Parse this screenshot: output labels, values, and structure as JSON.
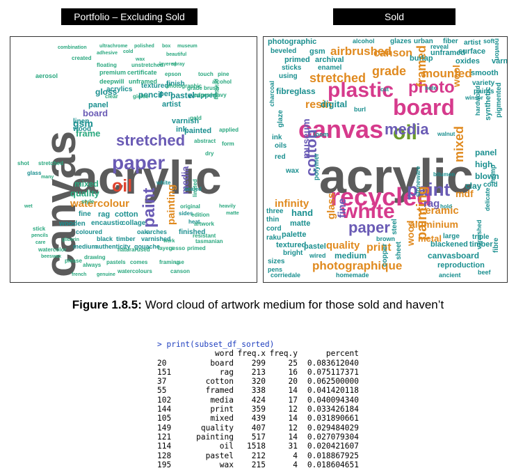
{
  "panels": {
    "left_title": "Portfolio – Excluding Sold",
    "right_title": "Sold"
  },
  "colors": {
    "gray": "#5b5b5b",
    "green": "#2aa87f",
    "teal": "#1a8f8f",
    "purple": "#6a5bb5",
    "pink": "#d63a8c",
    "red": "#e0442f",
    "orange": "#e08a1f",
    "olive": "#6b9a2a",
    "blue": "#3f72c8"
  },
  "cloud_left": {
    "words": [
      {
        "text": "acrylic",
        "color": "gray"
      },
      {
        "text": "canvas",
        "color": "gray"
      },
      {
        "text": "paper",
        "color": "purple"
      },
      {
        "text": "stretched",
        "color": "purple"
      },
      {
        "text": "oil",
        "color": "red"
      },
      {
        "text": "paint",
        "color": "purple"
      },
      {
        "text": "watercolour",
        "color": "orange"
      },
      {
        "text": "painting",
        "color": "orange"
      },
      {
        "text": "gsm",
        "color": "teal"
      },
      {
        "text": "board",
        "color": "purple"
      },
      {
        "text": "mixed",
        "color": "green"
      },
      {
        "text": "quality",
        "color": "green"
      },
      {
        "text": "media",
        "color": "purple"
      },
      {
        "text": "frame",
        "color": "green"
      },
      {
        "text": "ink",
        "color": "teal"
      },
      {
        "text": "painted",
        "color": "teal"
      },
      {
        "text": "varnish",
        "color": "teal"
      },
      {
        "text": "linen",
        "color": "teal"
      },
      {
        "text": "wood",
        "color": "teal"
      },
      {
        "text": "panel",
        "color": "teal"
      },
      {
        "text": "artist",
        "color": "teal"
      },
      {
        "text": "pastel",
        "color": "teal"
      },
      {
        "text": "pencil",
        "color": "teal"
      },
      {
        "text": "pen",
        "color": "teal"
      },
      {
        "text": "gloss",
        "color": "teal"
      },
      {
        "text": "acrylics",
        "color": "teal"
      },
      {
        "text": "textured",
        "color": "teal"
      },
      {
        "text": "finish",
        "color": "teal"
      },
      {
        "text": "wrapped",
        "color": "teal"
      },
      {
        "text": "fine",
        "color": "teal"
      },
      {
        "text": "rag",
        "color": "teal"
      },
      {
        "text": "cotton",
        "color": "teal"
      },
      {
        "text": "encaustic",
        "color": "teal"
      },
      {
        "text": "collage",
        "color": "teal"
      },
      {
        "text": "oak",
        "color": "teal"
      },
      {
        "text": "arches",
        "color": "teal"
      },
      {
        "text": "finished",
        "color": "teal"
      },
      {
        "text": "wooden",
        "color": "teal"
      },
      {
        "text": "coloured",
        "color": "teal"
      },
      {
        "text": "black",
        "color": "teal"
      },
      {
        "text": "timber",
        "color": "teal"
      },
      {
        "text": "varnished",
        "color": "teal"
      },
      {
        "text": "medium",
        "color": "teal"
      },
      {
        "text": "authenticity",
        "color": "teal"
      },
      {
        "text": "gouache",
        "color": "teal"
      },
      {
        "text": "glass",
        "color": "teal"
      },
      {
        "text": "white",
        "color": "teal"
      },
      {
        "text": "sealed",
        "color": "teal"
      },
      {
        "text": "sides",
        "color": "teal"
      },
      {
        "text": "heat",
        "color": "teal"
      },
      {
        "text": "combination",
        "color": "green"
      },
      {
        "text": "ultrachrome",
        "color": "green"
      },
      {
        "text": "polished",
        "color": "green"
      },
      {
        "text": "box",
        "color": "green"
      },
      {
        "text": "museum",
        "color": "green"
      },
      {
        "text": "adhesive",
        "color": "green"
      },
      {
        "text": "beautiful",
        "color": "green"
      },
      {
        "text": "created",
        "color": "green"
      },
      {
        "text": "premium",
        "color": "green"
      },
      {
        "text": "certificate",
        "color": "green"
      },
      {
        "text": "epson",
        "color": "green"
      },
      {
        "text": "photographic",
        "color": "green"
      },
      {
        "text": "floating",
        "color": "green"
      },
      {
        "text": "unstretched",
        "color": "green"
      },
      {
        "text": "touch",
        "color": "green"
      },
      {
        "text": "pine",
        "color": "green"
      },
      {
        "text": "aerosol",
        "color": "green"
      },
      {
        "text": "deepwill",
        "color": "green"
      },
      {
        "text": "unframed",
        "color": "green"
      },
      {
        "text": "alcohol",
        "color": "green"
      },
      {
        "text": "grade",
        "color": "green"
      },
      {
        "text": "brush",
        "color": "green"
      },
      {
        "text": "printing",
        "color": "green"
      },
      {
        "text": "heavy",
        "color": "green"
      },
      {
        "text": "edges",
        "color": "green"
      },
      {
        "text": "form",
        "color": "green"
      },
      {
        "text": "applied",
        "color": "green"
      },
      {
        "text": "gold",
        "color": "green"
      },
      {
        "text": "edition",
        "color": "green"
      },
      {
        "text": "limited",
        "color": "green"
      },
      {
        "text": "original",
        "color": "green"
      },
      {
        "text": "artwork",
        "color": "green"
      },
      {
        "text": "resistant",
        "color": "green"
      },
      {
        "text": "natural",
        "color": "green"
      },
      {
        "text": "used",
        "color": "green"
      },
      {
        "text": "layers",
        "color": "green"
      },
      {
        "text": "gesso",
        "color": "green"
      },
      {
        "text": "primed",
        "color": "green"
      },
      {
        "text": "tasmanian",
        "color": "green"
      },
      {
        "text": "drawing",
        "color": "green"
      },
      {
        "text": "pastels",
        "color": "green"
      },
      {
        "text": "comes",
        "color": "green"
      },
      {
        "text": "framing",
        "color": "green"
      },
      {
        "text": "use",
        "color": "green"
      },
      {
        "text": "please",
        "color": "green"
      },
      {
        "text": "always",
        "color": "green"
      },
      {
        "text": "watercolours",
        "color": "green"
      },
      {
        "text": "canson",
        "color": "green"
      },
      {
        "text": "french",
        "color": "green"
      },
      {
        "text": "genuine",
        "color": "green"
      },
      {
        "text": "watercolor",
        "color": "green"
      },
      {
        "text": "glicerin",
        "color": "green"
      },
      {
        "text": "beeswax",
        "color": "green"
      },
      {
        "text": "care",
        "color": "green"
      },
      {
        "text": "pencils",
        "color": "green"
      },
      {
        "text": "stick",
        "color": "green"
      },
      {
        "text": "wet",
        "color": "green"
      },
      {
        "text": "heavily",
        "color": "green"
      },
      {
        "text": "matte",
        "color": "green"
      },
      {
        "text": "many",
        "color": "green"
      },
      {
        "text": "style",
        "color": "green"
      },
      {
        "text": "work",
        "color": "green"
      },
      {
        "text": "cold",
        "color": "green"
      },
      {
        "text": "wax",
        "color": "green"
      },
      {
        "text": "clear",
        "color": "green"
      },
      {
        "text": "giclée",
        "color": "green"
      },
      {
        "text": "layered",
        "color": "green"
      },
      {
        "text": "spray",
        "color": "green"
      },
      {
        "text": "abstract",
        "color": "green"
      },
      {
        "text": "dry",
        "color": "green"
      },
      {
        "text": "shot",
        "color": "green"
      },
      {
        "text": "stretched",
        "color": "green"
      }
    ]
  },
  "cloud_right": {
    "words": [
      {
        "text": "acrylic",
        "color": "gray"
      },
      {
        "text": "canvas",
        "color": "pink"
      },
      {
        "text": "recycled",
        "color": "pink"
      },
      {
        "text": "board",
        "color": "pink"
      },
      {
        "text": "oil",
        "color": "olive"
      },
      {
        "text": "plastic",
        "color": "pink"
      },
      {
        "text": "white",
        "color": "pink"
      },
      {
        "text": "paint",
        "color": "purple"
      },
      {
        "text": "media",
        "color": "purple"
      },
      {
        "text": "paper",
        "color": "purple"
      },
      {
        "text": "photo",
        "color": "pink"
      },
      {
        "text": "cotton",
        "color": "purple"
      },
      {
        "text": "painting",
        "color": "orange"
      },
      {
        "text": "mixed",
        "color": "orange"
      },
      {
        "text": "framed",
        "color": "orange"
      },
      {
        "text": "stretched",
        "color": "orange"
      },
      {
        "text": "grade",
        "color": "orange"
      },
      {
        "text": "airbrushed",
        "color": "orange"
      },
      {
        "text": "canson",
        "color": "orange"
      },
      {
        "text": "mounted",
        "color": "orange"
      },
      {
        "text": "resin",
        "color": "orange"
      },
      {
        "text": "infinity",
        "color": "orange"
      },
      {
        "text": "ceramic",
        "color": "orange"
      },
      {
        "text": "aluminium",
        "color": "orange"
      },
      {
        "text": "photographique",
        "color": "orange"
      },
      {
        "text": "quality",
        "color": "orange"
      },
      {
        "text": "print",
        "color": "orange"
      },
      {
        "text": "wood",
        "color": "orange"
      },
      {
        "text": "fine",
        "color": "purple"
      },
      {
        "text": "glass",
        "color": "orange"
      },
      {
        "text": "rag",
        "color": "purple"
      },
      {
        "text": "metal",
        "color": "orange"
      },
      {
        "text": "mdf",
        "color": "orange"
      },
      {
        "text": "museum",
        "color": "purple"
      },
      {
        "text": "wool",
        "color": "orange"
      },
      {
        "text": "digital",
        "color": "teal"
      },
      {
        "text": "fibreglass",
        "color": "teal"
      },
      {
        "text": "hand",
        "color": "teal"
      },
      {
        "text": "matte",
        "color": "teal"
      },
      {
        "text": "palette",
        "color": "teal"
      },
      {
        "text": "pastel",
        "color": "teal"
      },
      {
        "text": "medium",
        "color": "teal"
      },
      {
        "text": "textured",
        "color": "teal"
      },
      {
        "text": "canvasboard",
        "color": "teal"
      },
      {
        "text": "blackened",
        "color": "teal"
      },
      {
        "text": "timber",
        "color": "teal"
      },
      {
        "text": "panel",
        "color": "teal"
      },
      {
        "text": "high",
        "color": "teal"
      },
      {
        "text": "blown",
        "color": "teal"
      },
      {
        "text": "clay",
        "color": "teal"
      },
      {
        "text": "cold",
        "color": "teal"
      },
      {
        "text": "smooth",
        "color": "teal"
      },
      {
        "text": "variety",
        "color": "teal"
      },
      {
        "text": "paints",
        "color": "teal"
      },
      {
        "text": "photographic",
        "color": "teal"
      },
      {
        "text": "beveled",
        "color": "teal"
      },
      {
        "text": "gsm",
        "color": "teal"
      },
      {
        "text": "primed",
        "color": "teal"
      },
      {
        "text": "archival",
        "color": "teal"
      },
      {
        "text": "burlap",
        "color": "teal"
      },
      {
        "text": "unframed",
        "color": "teal"
      },
      {
        "text": "surface",
        "color": "teal"
      },
      {
        "text": "oxides",
        "color": "teal"
      },
      {
        "text": "varnish",
        "color": "teal"
      },
      {
        "text": "using",
        "color": "teal"
      },
      {
        "text": "enamel",
        "color": "teal"
      },
      {
        "text": "sticks",
        "color": "teal"
      },
      {
        "text": "glazes",
        "color": "teal"
      },
      {
        "text": "urban",
        "color": "teal"
      },
      {
        "text": "fiber",
        "color": "teal"
      },
      {
        "text": "artist",
        "color": "teal"
      },
      {
        "text": "reveal",
        "color": "teal"
      },
      {
        "text": "alcohol",
        "color": "teal"
      },
      {
        "text": "soft",
        "color": "teal"
      },
      {
        "text": "reproduction",
        "color": "teal"
      },
      {
        "text": "ancient",
        "color": "teal"
      },
      {
        "text": "beef",
        "color": "teal"
      },
      {
        "text": "varnished",
        "color": "teal"
      },
      {
        "text": "large",
        "color": "teal"
      },
      {
        "text": "triple",
        "color": "teal"
      },
      {
        "text": "brown",
        "color": "teal"
      },
      {
        "text": "wired",
        "color": "teal"
      },
      {
        "text": "bright",
        "color": "teal"
      },
      {
        "text": "sizes",
        "color": "teal"
      },
      {
        "text": "pens",
        "color": "teal"
      },
      {
        "text": "raku",
        "color": "teal"
      },
      {
        "text": "cord",
        "color": "teal"
      },
      {
        "text": "corriedale",
        "color": "teal"
      },
      {
        "text": "homemade",
        "color": "teal"
      },
      {
        "text": "ink",
        "color": "teal"
      },
      {
        "text": "oils",
        "color": "teal"
      },
      {
        "text": "red",
        "color": "teal"
      },
      {
        "text": "wax",
        "color": "teal"
      },
      {
        "text": "loom",
        "color": "teal"
      },
      {
        "text": "burl",
        "color": "teal"
      },
      {
        "text": "cut",
        "color": "teal"
      },
      {
        "text": "note",
        "color": "teal"
      },
      {
        "text": "hold",
        "color": "teal"
      },
      {
        "text": "bitumen",
        "color": "teal"
      },
      {
        "text": "walnut",
        "color": "teal"
      },
      {
        "text": "winsor",
        "color": "teal"
      },
      {
        "text": "synthetic",
        "color": "teal"
      },
      {
        "text": "pigmented",
        "color": "teal"
      },
      {
        "text": "hardwood",
        "color": "teal"
      },
      {
        "text": "stoneware",
        "color": "teal"
      },
      {
        "text": "delicate",
        "color": "teal"
      },
      {
        "text": "hemp",
        "color": "teal"
      },
      {
        "text": "fibre",
        "color": "teal"
      },
      {
        "text": "copper",
        "color": "teal"
      },
      {
        "text": "sheet",
        "color": "teal"
      },
      {
        "text": "steel",
        "color": "teal"
      },
      {
        "text": "polymer",
        "color": "teal"
      },
      {
        "text": "charcoal",
        "color": "teal"
      },
      {
        "text": "glaze",
        "color": "teal"
      },
      {
        "text": "thin",
        "color": "teal"
      },
      {
        "text": "three",
        "color": "teal"
      },
      {
        "text": "newton",
        "color": "teal"
      }
    ]
  },
  "caption": {
    "label": "Figure 1.8.5:",
    "text": " Word cloud of artwork medium for those sold and haven’t"
  },
  "console": {
    "command": "> print(subset_df_sorted)",
    "header": {
      "word": "word",
      "freq_x": "freq.x",
      "freq_y": "freq.y",
      "percent": "percent"
    },
    "rows": [
      {
        "idx": "20",
        "word": "board",
        "freq_x": "299",
        "freq_y": "25",
        "percent": "0.083612040"
      },
      {
        "idx": "151",
        "word": "rag",
        "freq_x": "213",
        "freq_y": "16",
        "percent": "0.075117371"
      },
      {
        "idx": "37",
        "word": "cotton",
        "freq_x": "320",
        "freq_y": "20",
        "percent": "0.062500000"
      },
      {
        "idx": "55",
        "word": "framed",
        "freq_x": "338",
        "freq_y": "14",
        "percent": "0.041420118"
      },
      {
        "idx": "102",
        "word": "media",
        "freq_x": "424",
        "freq_y": "17",
        "percent": "0.040094340"
      },
      {
        "idx": "144",
        "word": "print",
        "freq_x": "359",
        "freq_y": "12",
        "percent": "0.033426184"
      },
      {
        "idx": "105",
        "word": "mixed",
        "freq_x": "439",
        "freq_y": "14",
        "percent": "0.031890661"
      },
      {
        "idx": "149",
        "word": "quality",
        "freq_x": "407",
        "freq_y": "12",
        "percent": "0.029484029"
      },
      {
        "idx": "121",
        "word": "painting",
        "freq_x": "517",
        "freq_y": "14",
        "percent": "0.027079304"
      },
      {
        "idx": "114",
        "word": "oil",
        "freq_x": "1518",
        "freq_y": "31",
        "percent": "0.020421607"
      },
      {
        "idx": "128",
        "word": "pastel",
        "freq_x": "212",
        "freq_y": "4",
        "percent": "0.018867925"
      },
      {
        "idx": "195",
        "word": "wax",
        "freq_x": "215",
        "freq_y": "4",
        "percent": "0.018604651"
      }
    ]
  }
}
